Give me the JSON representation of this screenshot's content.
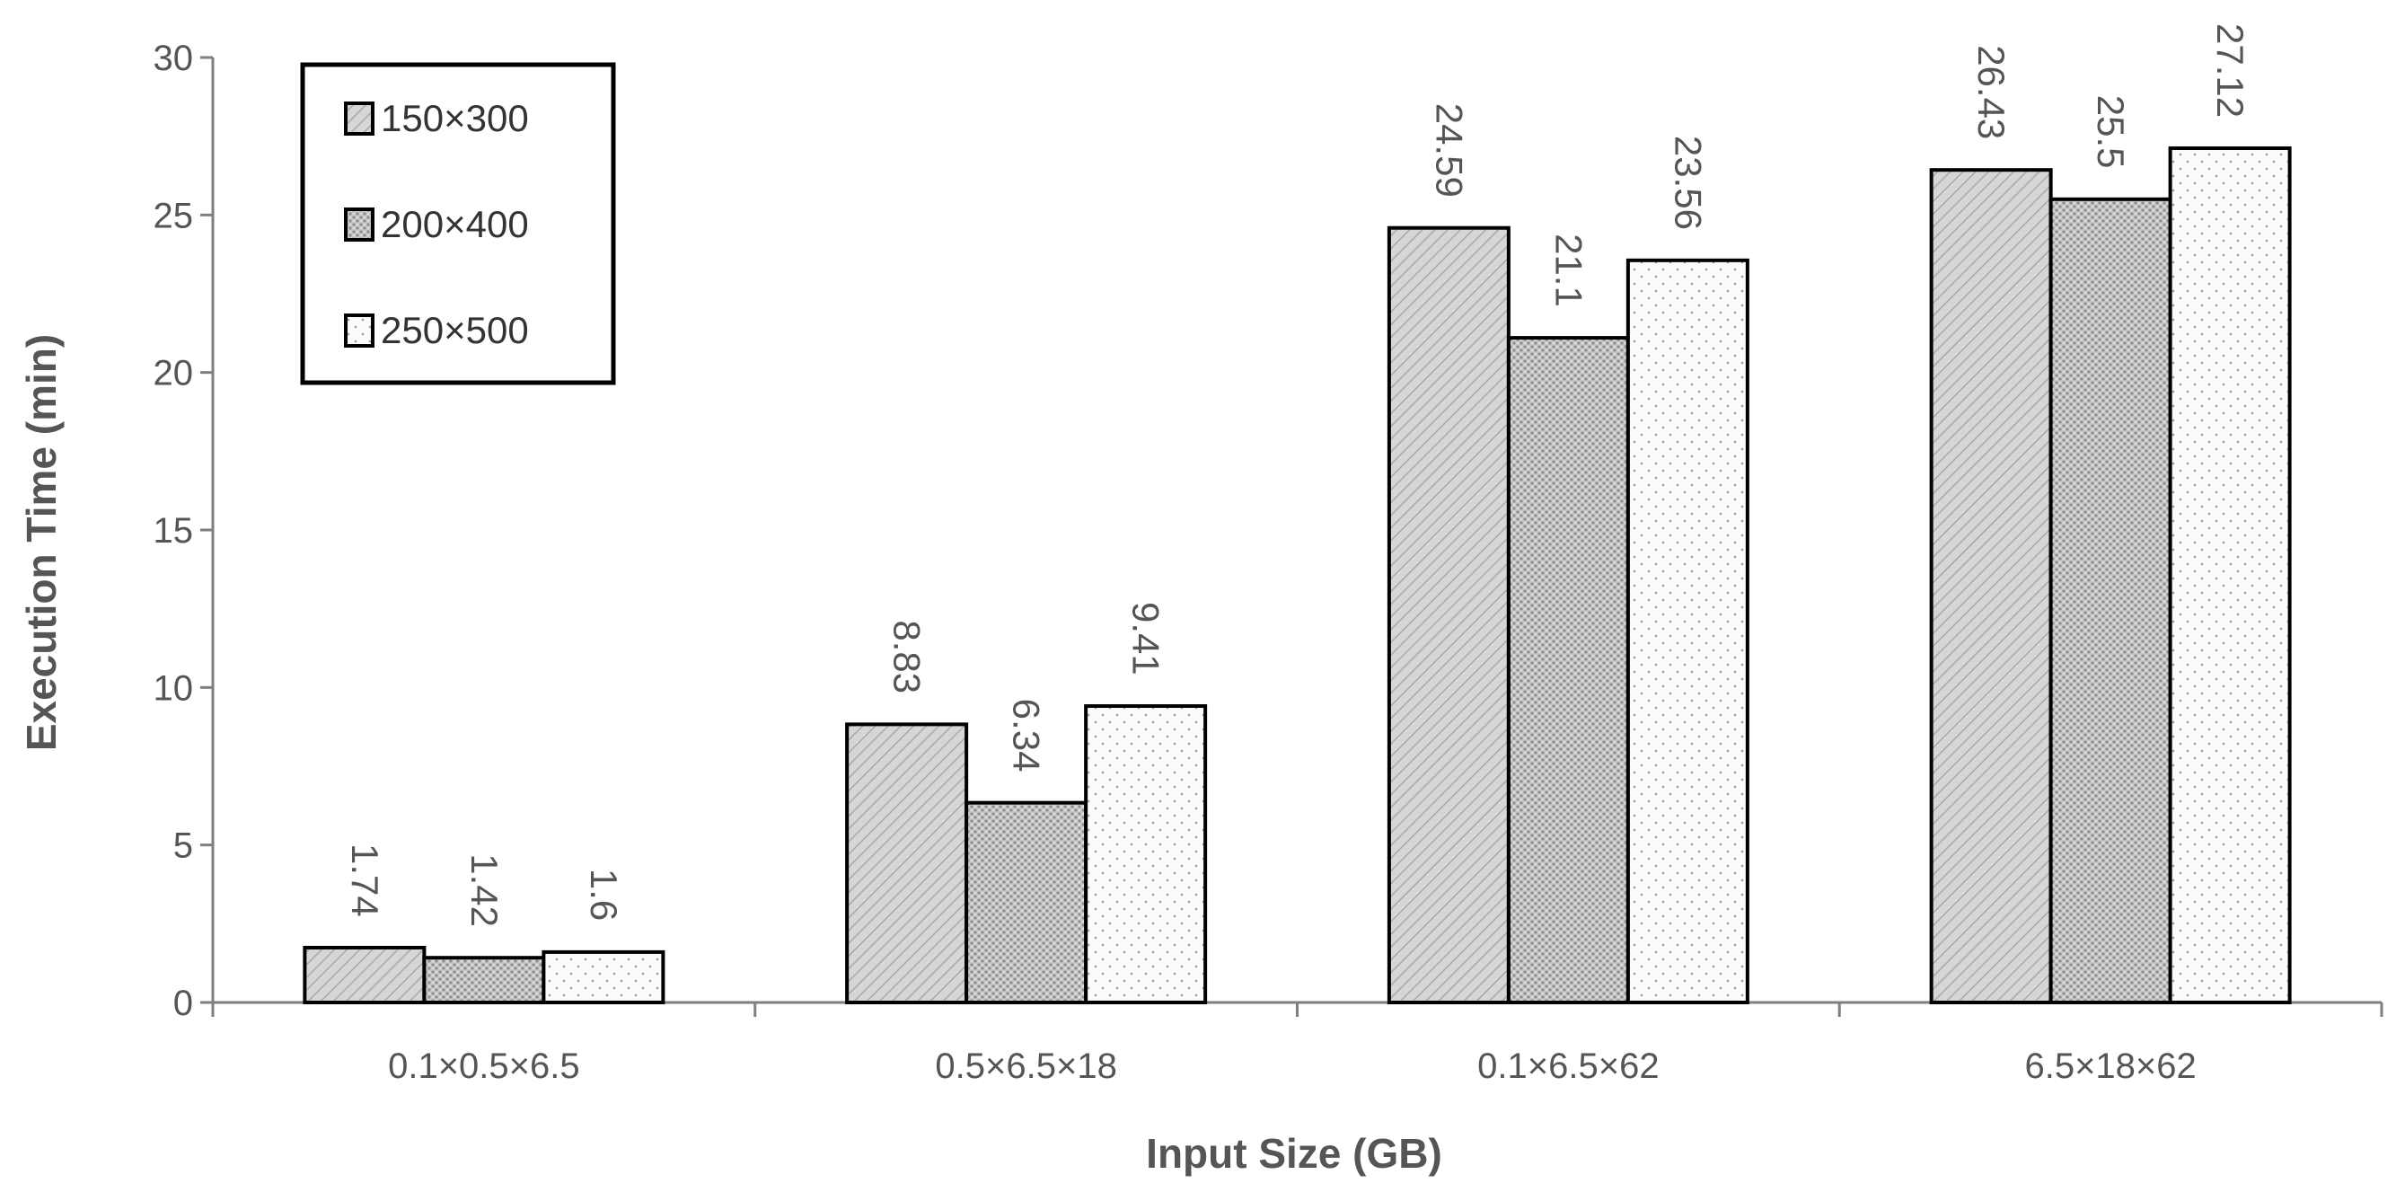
{
  "chart_data": {
    "type": "bar",
    "title": "",
    "xlabel": "Input Size (GB)",
    "ylabel": "Execution Time (min)",
    "ylim": [
      0,
      30
    ],
    "yticks": [
      "0",
      "5",
      "10",
      "15",
      "20",
      "25",
      "30"
    ],
    "categories": [
      "0.1×0.5×6.5",
      "0.5×6.5×18",
      "0.1×6.5×62",
      "6.5×18×62"
    ],
    "series": [
      {
        "name": "150×300",
        "values": [
          1.74,
          8.83,
          24.59,
          26.43
        ],
        "labels": [
          "1.74",
          "8.83",
          "24.59",
          "26.43"
        ],
        "pattern": "diagonal-lines",
        "color": "#d4d4d4"
      },
      {
        "name": "200×400",
        "values": [
          1.42,
          6.34,
          21.1,
          25.5
        ],
        "labels": [
          "1.42",
          "6.34",
          "21.1",
          "25.5"
        ],
        "pattern": "crosshatch-dots",
        "color": "#c4c4c4"
      },
      {
        "name": "250×500",
        "values": [
          1.6,
          9.41,
          23.56,
          27.12
        ],
        "labels": [
          "1.6",
          "9.41",
          "23.56",
          "27.12"
        ],
        "pattern": "sparse-dots",
        "color": "#f7f7f7"
      }
    ],
    "legend_position": "top-left",
    "grid": false,
    "data_labels_rotated": true
  }
}
